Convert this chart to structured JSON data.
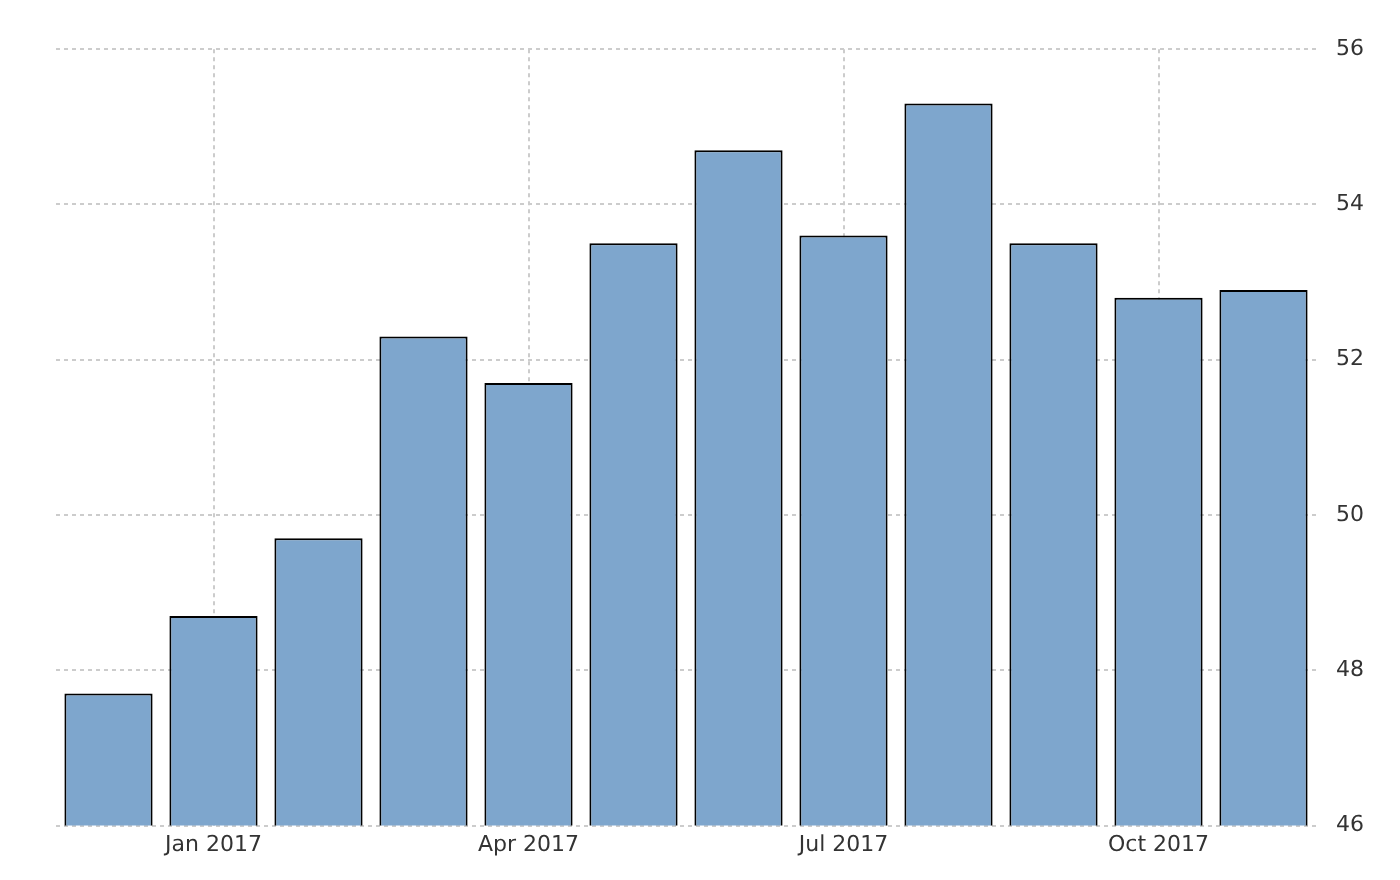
{
  "chart_data": {
    "type": "bar",
    "categories": [
      null,
      "Jan 2017",
      null,
      null,
      "Apr 2017",
      null,
      null,
      "Jul 2017",
      null,
      null,
      "Oct 2017",
      null
    ],
    "values": [
      47.7,
      48.7,
      49.7,
      52.3,
      51.7,
      53.5,
      54.7,
      53.6,
      55.3,
      53.5,
      52.8,
      52.9
    ],
    "color": "#7ea6cd",
    "ylim": [
      46,
      56
    ],
    "yticks": [
      46,
      48,
      50,
      52,
      54,
      56
    ],
    "grid": true
  }
}
